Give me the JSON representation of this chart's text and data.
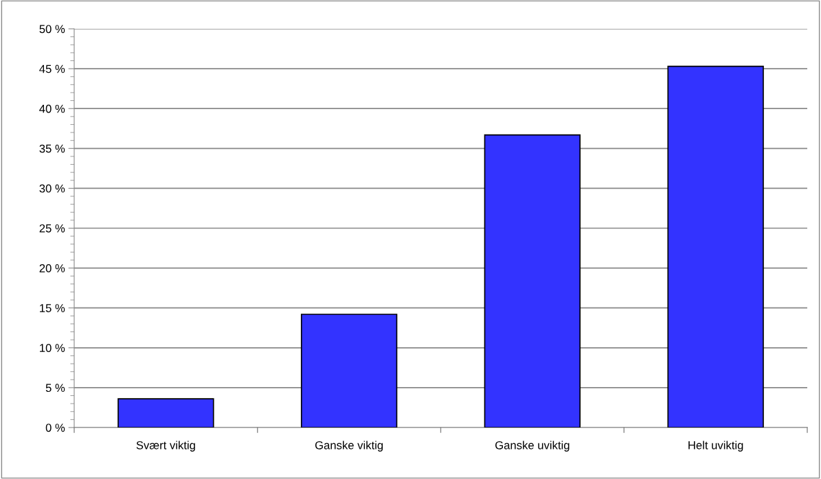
{
  "chart_data": {
    "type": "bar",
    "categories": [
      "Svært viktig",
      "Ganske viktig",
      "Ganske uviktig",
      "Helt uviktig"
    ],
    "values": [
      3.6,
      14.2,
      36.7,
      45.3
    ],
    "color": "#3333ff",
    "ylim": [
      0,
      50
    ],
    "yticks": [
      {
        "value": 0,
        "label": "0 %"
      },
      {
        "value": 5,
        "label": "5 %"
      },
      {
        "value": 10,
        "label": "10 %"
      },
      {
        "value": 15,
        "label": "15 %"
      },
      {
        "value": 20,
        "label": "20 %"
      },
      {
        "value": 25,
        "label": "25 %"
      },
      {
        "value": 30,
        "label": "30 %"
      },
      {
        "value": 35,
        "label": "35 %"
      },
      {
        "value": 40,
        "label": "40 %"
      },
      {
        "value": 45,
        "label": "45 %"
      },
      {
        "value": 50,
        "label": "50 %"
      }
    ],
    "grid": "y"
  }
}
